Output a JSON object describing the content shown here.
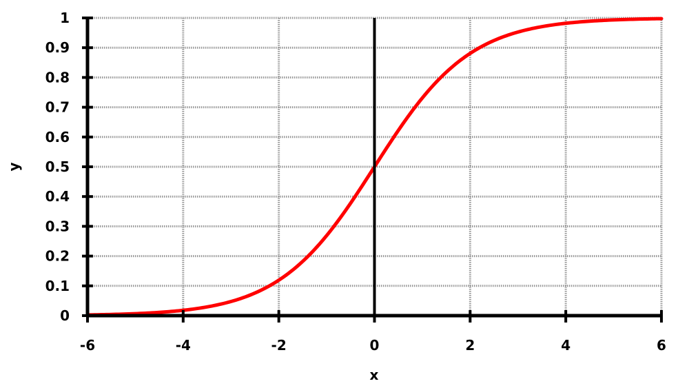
{
  "chart_data": {
    "type": "line",
    "title": "",
    "xlabel": "x",
    "ylabel": "y",
    "xlim": [
      -6,
      6
    ],
    "ylim": [
      0,
      1
    ],
    "xticks": [
      -6,
      -4,
      -2,
      0,
      2,
      4,
      6
    ],
    "xtick_labels": [
      "-6",
      "-4",
      "-2",
      "0",
      "2",
      "4",
      "6"
    ],
    "yticks": [
      0,
      0.1,
      0.2,
      0.3,
      0.4,
      0.5,
      0.6,
      0.7,
      0.8,
      0.9,
      1
    ],
    "ytick_labels": [
      "0",
      "0.1",
      "0.2",
      "0.3",
      "0.4",
      "0.5",
      "0.6",
      "0.7",
      "0.8",
      "0.9",
      "1"
    ],
    "grid": true,
    "colors": {
      "series": "#ff0000",
      "axes": "#000000",
      "grid": "#999999"
    },
    "series": [
      {
        "x": [
          -6,
          -5.5,
          -5,
          -4.5,
          -4,
          -3.5,
          -3,
          -2.5,
          -2,
          -1.5,
          -1,
          -0.5,
          0,
          0.5,
          1,
          1.5,
          2,
          2.5,
          3,
          3.5,
          4,
          4.5,
          5,
          5.5,
          6
        ],
        "y": [
          0.0025,
          0.0041,
          0.0067,
          0.011,
          0.018,
          0.0293,
          0.0474,
          0.0759,
          0.1192,
          0.1824,
          0.2689,
          0.3775,
          0.5,
          0.6225,
          0.7311,
          0.8176,
          0.8808,
          0.9241,
          0.9526,
          0.9707,
          0.982,
          0.989,
          0.9933,
          0.9959,
          0.9975
        ]
      }
    ]
  }
}
